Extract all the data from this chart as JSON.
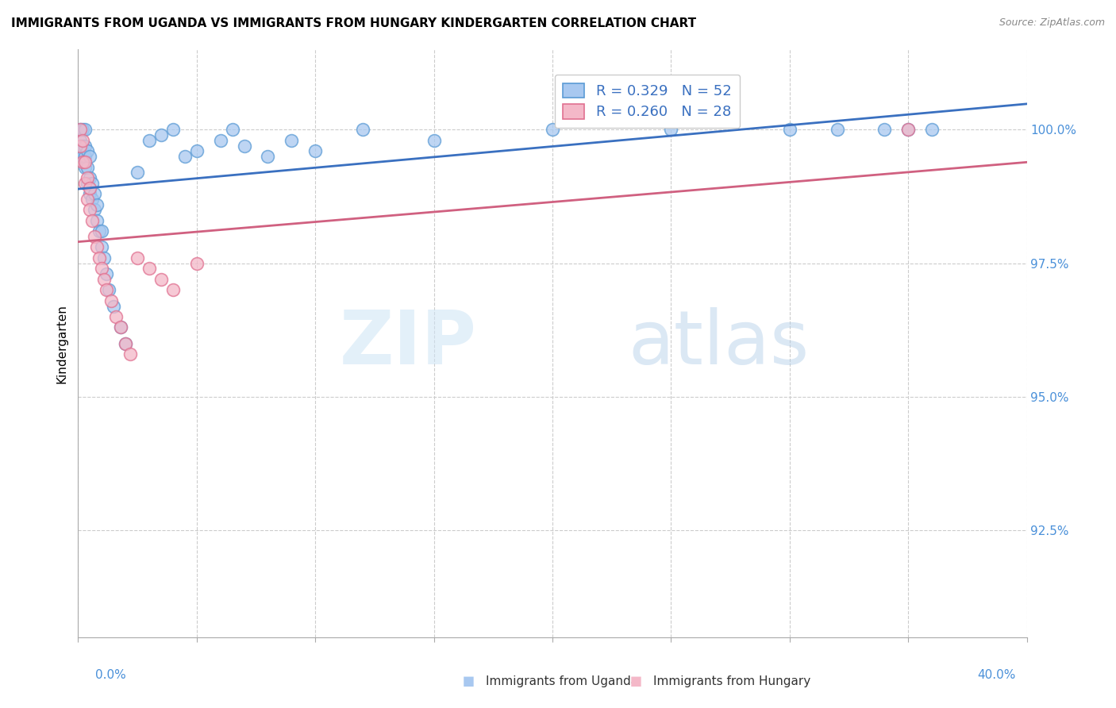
{
  "title": "IMMIGRANTS FROM UGANDA VS IMMIGRANTS FROM HUNGARY KINDERGARTEN CORRELATION CHART",
  "source": "Source: ZipAtlas.com",
  "ylabel": "Kindergarten",
  "xmin": 0.0,
  "xmax": 0.4,
  "ymin": 90.5,
  "ymax": 101.5,
  "legend_r1": "R = 0.329",
  "legend_n1": "N = 52",
  "legend_r2": "R = 0.260",
  "legend_n2": "N = 28",
  "color_uganda_fill": "#a8c8f0",
  "color_uganda_edge": "#5b9bd5",
  "color_hungary_fill": "#f4b8c8",
  "color_hungary_edge": "#e07090",
  "color_uganda_line": "#3a70c0",
  "color_hungary_line": "#d06080",
  "label_uganda": "Immigrants from Uganda",
  "label_hungary": "Immigrants from Hungary",
  "watermark_zip": "ZIP",
  "watermark_atlas": "atlas",
  "uganda_x": [
    0.001,
    0.001,
    0.001,
    0.002,
    0.002,
    0.002,
    0.003,
    0.003,
    0.003,
    0.003,
    0.004,
    0.004,
    0.004,
    0.005,
    0.005,
    0.005,
    0.006,
    0.006,
    0.007,
    0.007,
    0.008,
    0.008,
    0.009,
    0.01,
    0.01,
    0.011,
    0.012,
    0.013,
    0.015,
    0.018,
    0.02,
    0.025,
    0.03,
    0.035,
    0.04,
    0.045,
    0.05,
    0.06,
    0.065,
    0.07,
    0.08,
    0.09,
    0.1,
    0.12,
    0.15,
    0.2,
    0.25,
    0.3,
    0.32,
    0.34,
    0.35,
    0.36
  ],
  "uganda_y": [
    99.8,
    99.6,
    100.0,
    99.5,
    99.7,
    100.0,
    99.3,
    99.5,
    99.7,
    100.0,
    99.0,
    99.3,
    99.6,
    98.8,
    99.1,
    99.5,
    98.7,
    99.0,
    98.5,
    98.8,
    98.3,
    98.6,
    98.1,
    97.8,
    98.1,
    97.6,
    97.3,
    97.0,
    96.7,
    96.3,
    96.0,
    99.2,
    99.8,
    99.9,
    100.0,
    99.5,
    99.6,
    99.8,
    100.0,
    99.7,
    99.5,
    99.8,
    99.6,
    100.0,
    99.8,
    100.0,
    100.0,
    100.0,
    100.0,
    100.0,
    100.0,
    100.0
  ],
  "hungary_x": [
    0.001,
    0.001,
    0.002,
    0.002,
    0.003,
    0.003,
    0.004,
    0.004,
    0.005,
    0.005,
    0.006,
    0.007,
    0.008,
    0.009,
    0.01,
    0.011,
    0.012,
    0.014,
    0.016,
    0.018,
    0.02,
    0.022,
    0.025,
    0.03,
    0.035,
    0.04,
    0.05,
    0.35
  ],
  "hungary_y": [
    99.7,
    100.0,
    99.4,
    99.8,
    99.0,
    99.4,
    98.7,
    99.1,
    98.5,
    98.9,
    98.3,
    98.0,
    97.8,
    97.6,
    97.4,
    97.2,
    97.0,
    96.8,
    96.5,
    96.3,
    96.0,
    95.8,
    97.6,
    97.4,
    97.2,
    97.0,
    97.5,
    100.0
  ]
}
